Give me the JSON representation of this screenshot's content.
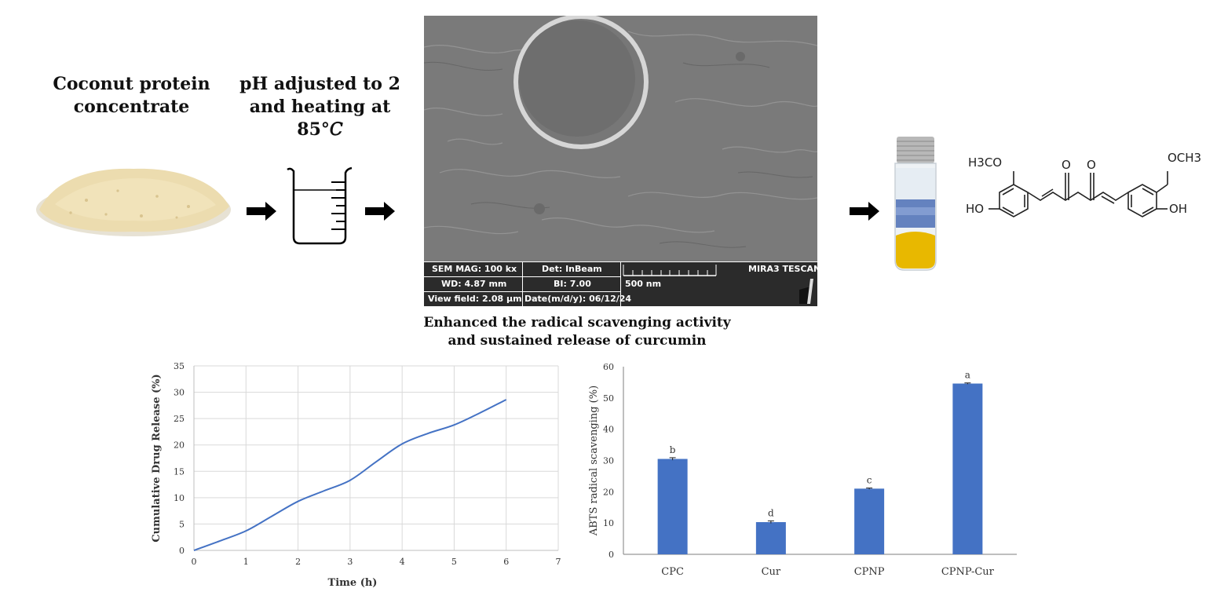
{
  "steps": {
    "powder_title": [
      "Coconut protein",
      "concentrate"
    ],
    "beaker_title": [
      "pH adjusted to 2",
      "and heating at",
      "85°𝐶"
    ]
  },
  "sem": {
    "mag": "SEM MAG: 100 kx",
    "det": "Det: InBeam",
    "instrument": "MIRA3 TESCAN",
    "wd": "WD: 4.87 mm",
    "bi": "BI: 7.00",
    "scale": "500 nm",
    "view_field": "View field: 2.08 μm",
    "date": "Date(m/d/y): 06/12/24"
  },
  "molecule": {
    "left_methoxy": "H3CO",
    "right_methoxy": "OCH3",
    "left_hydroxyl": "HO",
    "right_hydroxyl": "OH",
    "carbonyl_left": "O",
    "carbonyl_right": "O"
  },
  "caption": [
    "Enhanced the radical scavenging activity",
    "and sustained release of curcumin"
  ],
  "colors": {
    "series": "#4472c4",
    "grid": "#d9d9d9",
    "axis": "#bfbfbf",
    "powder": "#ecdcaf",
    "curcumin": "#e8b800"
  },
  "chart_data": [
    {
      "type": "line",
      "xlabel": "Time (h)",
      "ylabel": "Cumulative Drug Release (%)",
      "xlim": [
        0,
        7
      ],
      "ylim": [
        0,
        35
      ],
      "xticks": [
        0,
        1,
        2,
        3,
        4,
        5,
        6,
        7
      ],
      "yticks": [
        0,
        5,
        10,
        15,
        20,
        25,
        30,
        35
      ],
      "grid": true,
      "series": [
        {
          "x": [
            0,
            0.5,
            1,
            1.5,
            2,
            2.5,
            3,
            3.5,
            4,
            4.5,
            5,
            5.5,
            6
          ],
          "y": [
            0,
            1.8,
            3.7,
            6.5,
            9.3,
            11.3,
            13.3,
            16.8,
            20.2,
            22.2,
            23.8,
            26.1,
            28.6
          ]
        }
      ]
    },
    {
      "type": "bar",
      "xlabel": "",
      "ylabel": "ABTS radical scavenging (%)",
      "ylim": [
        0,
        60
      ],
      "yticks": [
        0,
        10,
        20,
        30,
        40,
        50,
        60
      ],
      "grid": false,
      "categories": [
        "CPC",
        "Cur",
        "CPNP",
        "CPNP-Cur"
      ],
      "values": [
        30.5,
        10.3,
        21.0,
        54.6
      ],
      "errors": [
        0.4,
        0.4,
        0.2,
        0.2
      ],
      "labels": [
        "b",
        "d",
        "c",
        "a"
      ]
    }
  ]
}
